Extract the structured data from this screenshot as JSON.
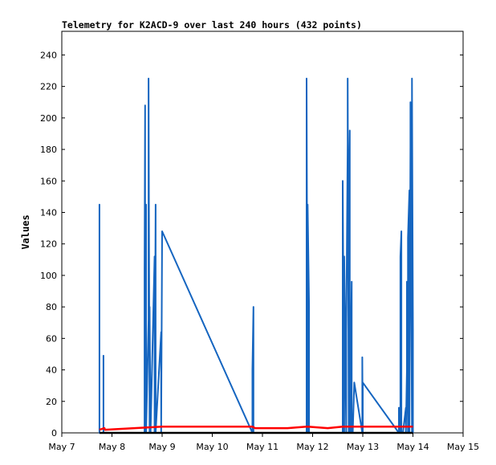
{
  "chart_data": {
    "type": "line",
    "title": "Telemetry for K2ACD-9 over last 240 hours (432 points)",
    "xlabel": "",
    "ylabel": "Values",
    "xlim": [
      7,
      15
    ],
    "ylim": [
      0,
      255
    ],
    "x_ticks": [
      {
        "value": 7,
        "label": "May 7"
      },
      {
        "value": 8,
        "label": "May 8"
      },
      {
        "value": 9,
        "label": "May 9"
      },
      {
        "value": 10,
        "label": "May 10"
      },
      {
        "value": 11,
        "label": "May 11"
      },
      {
        "value": 12,
        "label": "May 12"
      },
      {
        "value": 13,
        "label": "May 13"
      },
      {
        "value": 14,
        "label": "May 14"
      },
      {
        "value": 15,
        "label": "May 15"
      }
    ],
    "y_ticks": [
      0,
      20,
      40,
      60,
      80,
      100,
      120,
      140,
      160,
      180,
      200,
      220,
      240
    ],
    "legend": "none",
    "grid": false,
    "series": [
      {
        "name": "",
        "color": "#1565c0",
        "x": [
          7.75,
          7.75,
          7.75,
          7.83,
          7.83,
          7.83,
          8.65,
          8.65,
          8.66,
          8.66,
          8.68,
          8.68,
          8.73,
          8.73,
          8.75,
          8.75,
          8.77,
          8.77,
          8.85,
          8.85,
          8.87,
          8.87,
          8.98,
          8.98,
          9.0,
          9.0,
          10.8,
          10.8,
          10.82,
          10.82,
          11.88,
          11.88,
          11.9,
          11.9,
          11.93,
          11.93,
          12.6,
          12.6,
          12.63,
          12.63,
          12.67,
          12.67,
          12.7,
          12.7,
          12.72,
          12.72,
          12.74,
          12.74,
          12.76,
          12.76,
          12.78,
          12.78,
          12.8,
          12.8,
          12.83,
          12.83,
          12.99,
          12.99,
          13.0,
          13.0,
          13.72,
          13.72,
          13.75,
          13.75,
          13.77,
          13.77,
          13.8,
          13.8,
          13.86,
          13.86,
          13.88,
          13.88,
          13.9,
          13.9,
          13.93,
          13.93,
          13.95,
          13.95,
          13.98,
          13.98,
          14.0,
          14.0
        ],
        "y": [
          0,
          145,
          0,
          0,
          49,
          0,
          0,
          104,
          208,
          0,
          145,
          0,
          72,
          225,
          0,
          80,
          0,
          0,
          112,
          0,
          145,
          0,
          64,
          0,
          128,
          128,
          0,
          40,
          80,
          0,
          0,
          225,
          0,
          145,
          80,
          0,
          0,
          160,
          0,
          112,
          0,
          64,
          184,
          225,
          0,
          144,
          192,
          0,
          0,
          48,
          96,
          0,
          0,
          0,
          32,
          32,
          0,
          48,
          0,
          32,
          0,
          16,
          0,
          112,
          128,
          0,
          0,
          0,
          16,
          0,
          40,
          96,
          0,
          124,
          154,
          0,
          182,
          210,
          0,
          225,
          64,
          0
        ]
      },
      {
        "name": "",
        "color": "#ff0000",
        "x": [
          7.75,
          7.85,
          7.86,
          9.0,
          10.8,
          10.85,
          11.0,
          11.5,
          11.9,
          12.3,
          12.6,
          13.0,
          13.5,
          14.0
        ],
        "y": [
          2,
          3,
          2,
          4,
          4,
          3,
          3,
          3,
          4,
          3,
          4,
          4,
          4,
          4
        ]
      },
      {
        "name": "",
        "color": "#000000",
        "x": [
          7.75,
          14.0
        ],
        "y": [
          0,
          0
        ]
      }
    ]
  }
}
